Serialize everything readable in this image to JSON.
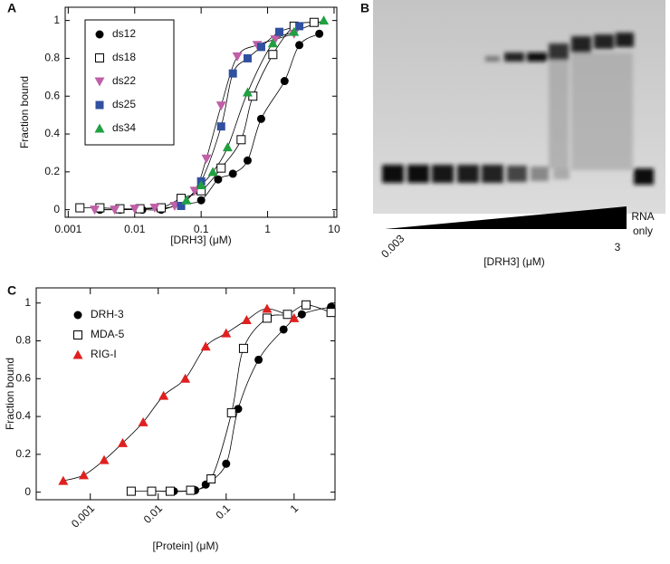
{
  "chart_data": [
    {
      "type": "scatter",
      "panel": "A",
      "xlabel": "[DRH3] (μM)",
      "ylabel": "Fraction bound",
      "log_x": true,
      "legend": "upper left",
      "xlim": [
        0.0009,
        11
      ],
      "ylim": [
        -0.04,
        1.07
      ],
      "xticks": [
        0.001,
        0.01,
        0.1,
        1,
        10
      ],
      "yticks": [
        0,
        0.2,
        0.4,
        0.6,
        0.8,
        1
      ],
      "series": [
        {
          "name": "ds12",
          "color": "#000000",
          "marker": "circle",
          "x": [
            0.003,
            0.006,
            0.013,
            0.025,
            0.05,
            0.1,
            0.18,
            0.3,
            0.5,
            0.8,
            1.8,
            3,
            6
          ],
          "values": [
            0,
            0,
            0,
            0,
            0.03,
            0.05,
            0.16,
            0.19,
            0.26,
            0.48,
            0.68,
            0.87,
            0.93
          ]
        },
        {
          "name": "ds18",
          "color": "#000000",
          "marker": "square-open",
          "x": [
            0.0015,
            0.003,
            0.006,
            0.012,
            0.025,
            0.05,
            0.1,
            0.2,
            0.4,
            0.6,
            1.2,
            2.5,
            5
          ],
          "values": [
            0.01,
            0.01,
            0.005,
            0.005,
            0.01,
            0.06,
            0.1,
            0.22,
            0.37,
            0.6,
            0.82,
            0.97,
            0.99
          ]
        },
        {
          "name": "ds22",
          "color": "#c060a8",
          "marker": "triangle-down",
          "x": [
            0.0025,
            0.005,
            0.01,
            0.02,
            0.04,
            0.08,
            0.12,
            0.2,
            0.35,
            0.7,
            1.3,
            2.5
          ],
          "values": [
            0,
            0,
            0.005,
            0.01,
            0.02,
            0.1,
            0.27,
            0.55,
            0.81,
            0.87,
            0.9,
            0.93
          ]
        },
        {
          "name": "ds25",
          "color": "#3050a0",
          "marker": "square",
          "x": [
            0.05,
            0.1,
            0.2,
            0.3,
            0.5,
            0.8,
            1.5,
            3
          ],
          "values": [
            0.02,
            0.15,
            0.44,
            0.72,
            0.8,
            0.86,
            0.94,
            0.97
          ]
        },
        {
          "name": "ds34",
          "color": "#20a040",
          "marker": "triangle",
          "x": [
            0.06,
            0.1,
            0.15,
            0.25,
            0.5,
            1.2,
            2.5,
            7
          ],
          "values": [
            0.05,
            0.13,
            0.2,
            0.33,
            0.62,
            0.88,
            0.94,
            1.0
          ]
        }
      ]
    },
    {
      "type": "scatter",
      "panel": "C",
      "xlabel": "[Protein] (μM)",
      "ylabel": "Fraction bound",
      "log_x": true,
      "legend": "upper left",
      "xlim": [
        0.00016,
        4
      ],
      "ylim": [
        -0.04,
        1.08
      ],
      "xticks": [
        0.001,
        0.01,
        0.1,
        1
      ],
      "yticks": [
        0,
        0.2,
        0.4,
        0.6,
        0.8,
        1
      ],
      "series": [
        {
          "name": "DRH-3",
          "color": "#000000",
          "marker": "circle",
          "x": [
            0.008,
            0.017,
            0.035,
            0.05,
            0.1,
            0.15,
            0.3,
            0.7,
            1.3,
            3.5
          ],
          "values": [
            0.005,
            0.005,
            0.01,
            0.04,
            0.15,
            0.44,
            0.7,
            0.86,
            0.94,
            0.98
          ]
        },
        {
          "name": "MDA-5",
          "color": "#000000",
          "marker": "square-open",
          "x": [
            0.004,
            0.008,
            0.015,
            0.03,
            0.06,
            0.12,
            0.18,
            0.4,
            0.8,
            1.5,
            3.5
          ],
          "values": [
            0.005,
            0.005,
            0.005,
            0.01,
            0.07,
            0.42,
            0.76,
            0.92,
            0.94,
            0.99,
            0.95
          ]
        },
        {
          "name": "RIG-I",
          "color": "#e02020",
          "marker": "triangle",
          "x": [
            0.0004,
            0.0008,
            0.0016,
            0.003,
            0.006,
            0.012,
            0.025,
            0.05,
            0.1,
            0.2,
            0.4,
            1
          ],
          "values": [
            0.06,
            0.09,
            0.17,
            0.26,
            0.37,
            0.51,
            0.6,
            0.77,
            0.84,
            0.91,
            0.97,
            0.92
          ]
        }
      ]
    }
  ],
  "gel": {
    "panel": "B",
    "start_label": "0.003",
    "end_label": "3",
    "control_label": [
      "RNA",
      "only"
    ],
    "axis_label": "[DRH3] (μM)"
  }
}
